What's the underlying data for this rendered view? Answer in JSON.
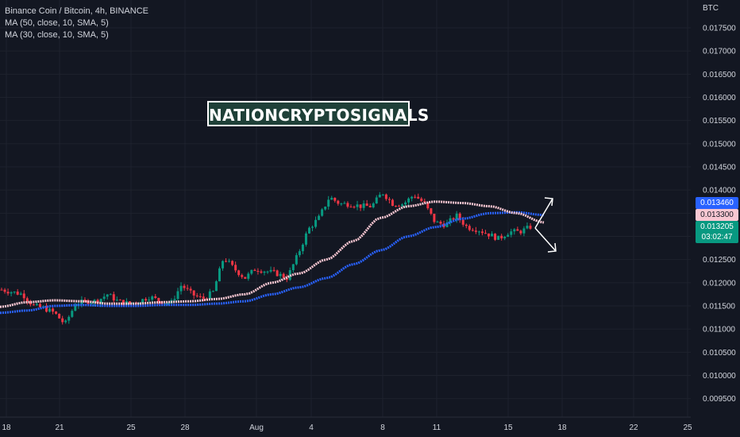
{
  "legend": {
    "symbol": "Binance Coin / Bitcoin, 4h, BINANCE",
    "ma1": "MA (50, close, 10, SMA, 5)",
    "ma2": "MA (30, close, 10, SMA, 5)"
  },
  "watermark": "NATIONCRYPTOSIGNALS",
  "price_axis": {
    "unit": "BTC",
    "ticks": [
      "0.017500",
      "0.017000",
      "0.016500",
      "0.016000",
      "0.015500",
      "0.015000",
      "0.014500",
      "0.014000",
      "0.013500",
      "0.013000",
      "0.012500",
      "0.012000",
      "0.011500",
      "0.011000",
      "0.010500",
      "0.010000",
      "0.009500"
    ]
  },
  "time_axis": {
    "labels": [
      "18",
      "21",
      "25",
      "28",
      "Aug",
      "4",
      "8",
      "11",
      "15",
      "18",
      "22",
      "25"
    ]
  },
  "price_tags": {
    "ma_blue": "0.013460",
    "ma_pink": "0.013300",
    "last_price": "0.013205",
    "countdown": "03:02:47"
  },
  "colors": {
    "background": "#131722",
    "up": "#089981",
    "down": "#f23645",
    "ma_blue": "#2962ff",
    "ma_pink": "#f8c7d2",
    "text": "#d1d4dc",
    "grid": "#1e222d"
  },
  "chart_data": {
    "type": "candlestick",
    "title": "Binance Coin / Bitcoin, 4h, BINANCE",
    "ylabel": "BTC",
    "ylim": [
      0.0091,
      0.0181
    ],
    "x_labels": [
      "18",
      "21",
      "25",
      "28",
      "Aug",
      "4",
      "8",
      "11",
      "15",
      "18",
      "22",
      "25"
    ],
    "close_path": [
      0.01185,
      0.0118,
      0.01175,
      0.0115,
      0.01145,
      0.01135,
      0.0111,
      0.01155,
      0.0116,
      0.0116,
      0.01175,
      0.0116,
      0.01155,
      0.0116,
      0.0117,
      0.0116,
      0.01155,
      0.01195,
      0.01175,
      0.01165,
      0.0118,
      0.01255,
      0.0123,
      0.0121,
      0.0123,
      0.01225,
      0.0122,
      0.0121,
      0.0126,
      0.01315,
      0.0134,
      0.01385,
      0.0137,
      0.0137,
      0.01365,
      0.01365,
      0.01395,
      0.0137,
      0.0137,
      0.0139,
      0.0137,
      0.0133,
      0.01325,
      0.01345,
      0.0132,
      0.01315,
      0.01305,
      0.01295,
      0.0131,
      0.0131,
      0.013205
    ],
    "series": [
      {
        "name": "MA (50, close, 10, SMA, 5)",
        "color": "#2962ff",
        "values": [
          0.01135,
          0.0114,
          0.0115,
          0.01152,
          0.0115,
          0.0115,
          0.01152,
          0.01152,
          0.01155,
          0.0116,
          0.01175,
          0.0119,
          0.0121,
          0.0124,
          0.0127,
          0.013,
          0.0132,
          0.01338,
          0.0135,
          0.01352,
          0.01346
        ]
      },
      {
        "name": "MA (30, close, 10, SMA, 5)",
        "color": "#f8c7d2",
        "values": [
          0.01148,
          0.01158,
          0.01162,
          0.0116,
          0.01155,
          0.01155,
          0.01158,
          0.0116,
          0.01165,
          0.01175,
          0.012,
          0.0122,
          0.0125,
          0.0129,
          0.0134,
          0.01365,
          0.01375,
          0.01372,
          0.01365,
          0.0135,
          0.0133
        ]
      }
    ]
  }
}
